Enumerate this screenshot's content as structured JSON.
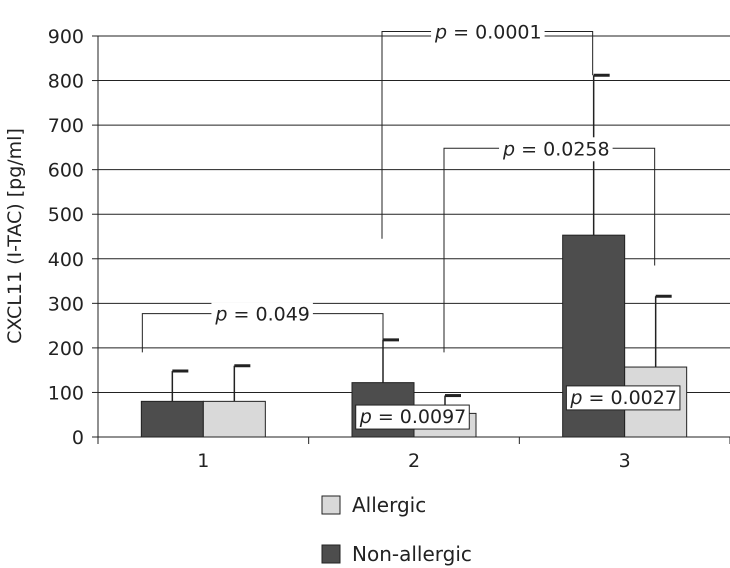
{
  "chart_data": {
    "type": "bar",
    "ylabel": "CXCL11 (I-TAC) [pg/ml]",
    "categories": [
      "1",
      "2",
      "3"
    ],
    "ylim": [
      0,
      900
    ],
    "yticks": [
      0,
      100,
      200,
      300,
      400,
      500,
      600,
      700,
      800,
      900
    ],
    "grid": true,
    "legend_position": "bottom-center",
    "colors": {
      "allergic": "#d9d9d9",
      "non_allergic": "#4d4d4d",
      "axis": "#222222"
    },
    "series": [
      {
        "name": "Non-allergic",
        "values": [
          80,
          122,
          453
        ],
        "error": [
          148,
          218,
          812
        ]
      },
      {
        "name": "Allergic",
        "values": [
          80,
          53,
          157
        ],
        "error": [
          160,
          93,
          316
        ]
      }
    ],
    "annotations": [
      {
        "p_label": "p",
        "text": "= 0.049"
      },
      {
        "p_label": "p",
        "text": "= 0.0001"
      },
      {
        "p_label": "p",
        "text": "= 0.0258"
      },
      {
        "p_label": "p",
        "text": "= 0.0097"
      },
      {
        "p_label": "p",
        "text": "= 0.0027"
      }
    ]
  }
}
